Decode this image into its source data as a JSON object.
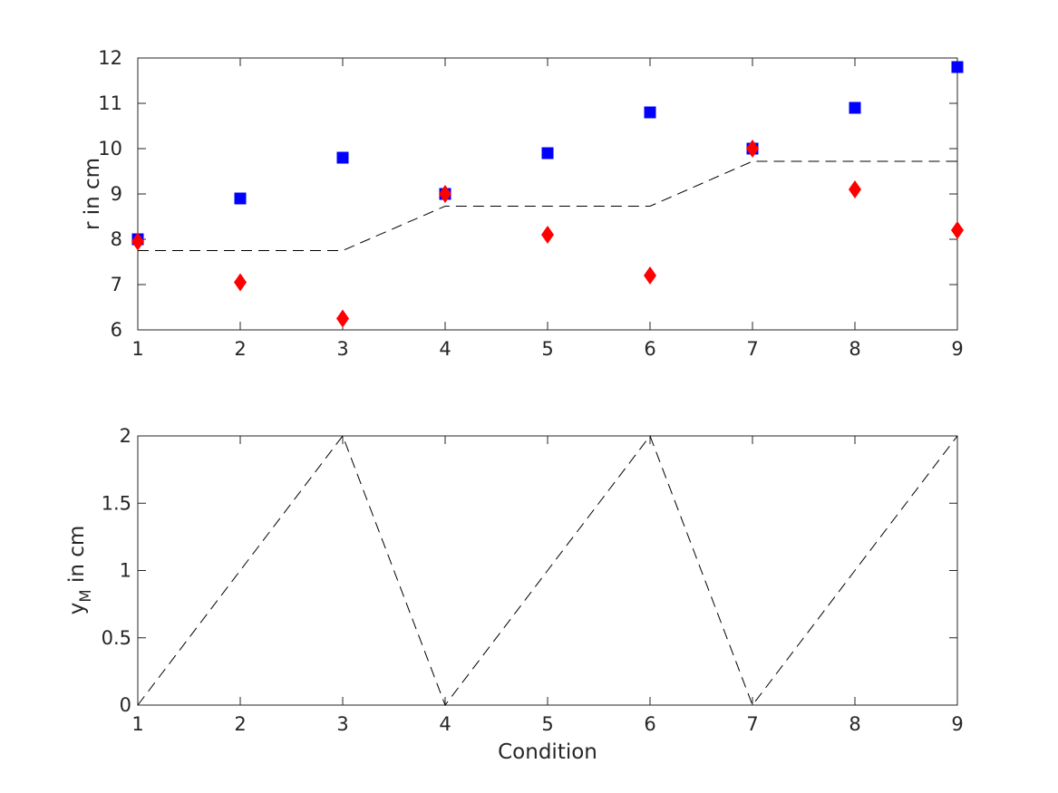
{
  "figure": {
    "background_color": "#ffffff",
    "axes_color": "#262626",
    "dashed_line_color": "#000000",
    "marker_colors": {
      "square": "#0000ff",
      "diamond": "#ff0000"
    }
  },
  "chart_data": [
    {
      "type": "scatter",
      "title": "",
      "xlabel": "",
      "ylabel": "r in cm",
      "xlim": [
        1,
        9
      ],
      "ylim": [
        6,
        12
      ],
      "grid": false,
      "legend": null,
      "x": [
        1,
        2,
        3,
        4,
        5,
        6,
        7,
        8,
        9
      ],
      "xticks": [
        {
          "v": 1,
          "label": "1"
        },
        {
          "v": 2,
          "label": "2"
        },
        {
          "v": 3,
          "label": "3"
        },
        {
          "v": 4,
          "label": "4"
        },
        {
          "v": 5,
          "label": "5"
        },
        {
          "v": 6,
          "label": "6"
        },
        {
          "v": 7,
          "label": "7"
        },
        {
          "v": 8,
          "label": "8"
        },
        {
          "v": 9,
          "label": "9"
        }
      ],
      "yticks": [
        {
          "v": 6,
          "label": "6"
        },
        {
          "v": 7,
          "label": "7"
        },
        {
          "v": 8,
          "label": "8"
        },
        {
          "v": 9,
          "label": "9"
        },
        {
          "v": 10,
          "label": "10"
        },
        {
          "v": 11,
          "label": "11"
        },
        {
          "v": 12,
          "label": "12"
        }
      ],
      "series": [
        {
          "name": "blue-squares",
          "type": "scatter",
          "marker": "square",
          "color": "#0000ff",
          "values": [
            8.0,
            8.9,
            9.8,
            9.0,
            9.9,
            10.8,
            10.0,
            10.9,
            11.8
          ]
        },
        {
          "name": "red-diamonds",
          "type": "scatter",
          "marker": "diamond",
          "color": "#ff0000",
          "values": [
            7.95,
            7.05,
            6.25,
            9.0,
            8.1,
            7.2,
            10.0,
            9.1,
            8.2
          ]
        },
        {
          "name": "mean-dashed-line",
          "type": "line",
          "linestyle": "dashed",
          "color": "#000000",
          "values": [
            7.75,
            7.75,
            7.75,
            8.73,
            8.73,
            8.73,
            9.72,
            9.72,
            9.72
          ]
        }
      ]
    },
    {
      "type": "line",
      "title": "",
      "xlabel": "Condition",
      "ylabel": "y_M in cm",
      "ylabel_parts": {
        "base": "y",
        "sub": "M",
        "rest": " in cm"
      },
      "xlim": [
        1,
        9
      ],
      "ylim": [
        0,
        2
      ],
      "grid": false,
      "legend": null,
      "x": [
        1,
        2,
        3,
        4,
        5,
        6,
        7,
        8,
        9
      ],
      "xticks": [
        {
          "v": 1,
          "label": "1"
        },
        {
          "v": 2,
          "label": "2"
        },
        {
          "v": 3,
          "label": "3"
        },
        {
          "v": 4,
          "label": "4"
        },
        {
          "v": 5,
          "label": "5"
        },
        {
          "v": 6,
          "label": "6"
        },
        {
          "v": 7,
          "label": "7"
        },
        {
          "v": 8,
          "label": "8"
        },
        {
          "v": 9,
          "label": "9"
        }
      ],
      "yticks": [
        {
          "v": 0,
          "label": "0"
        },
        {
          "v": 0.5,
          "label": "0.5"
        },
        {
          "v": 1,
          "label": "1"
        },
        {
          "v": 1.5,
          "label": "1.5"
        },
        {
          "v": 2,
          "label": "2"
        }
      ],
      "series": [
        {
          "name": "ym-dashed-line",
          "type": "line",
          "linestyle": "dashed",
          "color": "#000000",
          "values": [
            0,
            1,
            2,
            0,
            1,
            2,
            0,
            1,
            2
          ]
        }
      ]
    }
  ]
}
